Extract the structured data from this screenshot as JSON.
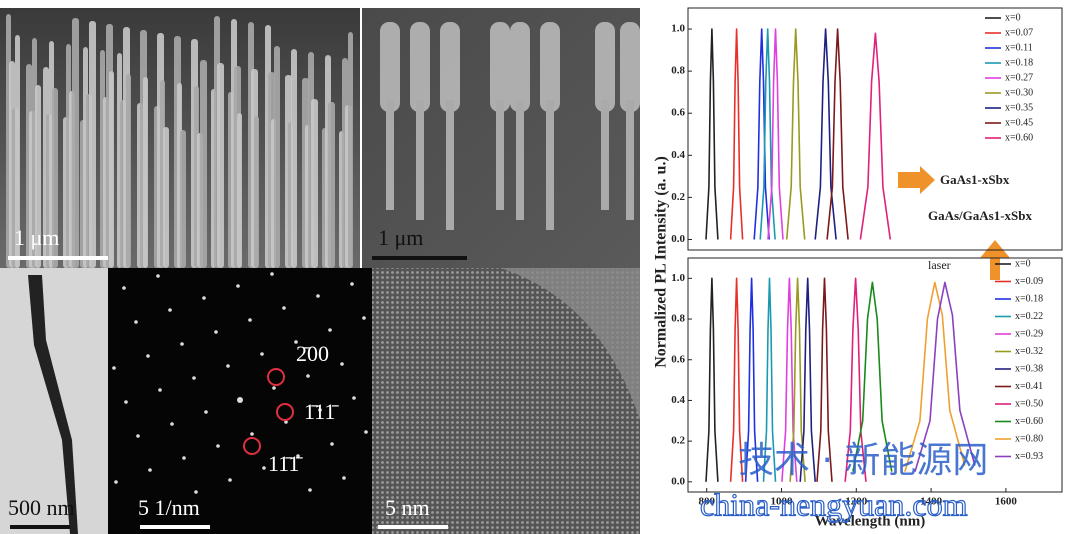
{
  "panels": [
    {
      "scale_bar": "1 μm"
    },
    {
      "scale_bar": "1 μm"
    },
    {
      "scale_bar": "500 nm"
    },
    {
      "scale_bar": "5 1/nm",
      "spots": [
        "2̄00",
        "1̄11̄",
        "11̄1̄"
      ]
    },
    {
      "scale_bar": "5 nm"
    }
  ],
  "watermark": {
    "text": "技术 · 新能源网",
    "url": "china-nengyuan.com"
  },
  "chart_data": [
    {
      "type": "line",
      "ylabel": "Normalized PL Intensity (a. u.)",
      "annotations": [
        "GaAs1-xSbx",
        "GaAs/GaAs1-xSbx"
      ],
      "xlim": [
        750,
        1750
      ],
      "ylim": [
        -0.05,
        1.1
      ],
      "yticks": [
        {
          "value": 0,
          "label": "0.0"
        },
        0.2,
        0.4,
        0.6,
        0.8,
        {
          "value": 1,
          "label": "1.0"
        }
      ],
      "series": [
        {
          "name": "x=0",
          "color": "#222222",
          "x": [
            798,
            806,
            810,
            814,
            818,
            822,
            830
          ],
          "values": [
            0,
            0.25,
            0.75,
            1,
            0.75,
            0.25,
            0
          ]
        },
        {
          "name": "x=0.07",
          "color": "#e8302a",
          "x": [
            864,
            872,
            876,
            880,
            884,
            888,
            896
          ],
          "values": [
            0,
            0.25,
            0.75,
            1,
            0.75,
            0.25,
            0
          ]
        },
        {
          "name": "x=0.11",
          "color": "#2030e0",
          "x": [
            927,
            937,
            942,
            947,
            952,
            957,
            967
          ],
          "values": [
            0,
            0.25,
            0.75,
            1,
            0.75,
            0.25,
            0
          ]
        },
        {
          "name": "x=0.18",
          "color": "#1a9ab0",
          "x": [
            943,
            953,
            958,
            963,
            968,
            973,
            983
          ],
          "values": [
            0,
            0.25,
            0.75,
            1,
            0.75,
            0.25,
            0
          ]
        },
        {
          "name": "x=0.27",
          "color": "#e040e0",
          "x": [
            964,
            974,
            979,
            984,
            989,
            994,
            1004
          ],
          "values": [
            0,
            0.25,
            0.75,
            1,
            0.75,
            0.25,
            0
          ]
        },
        {
          "name": "x=0.30",
          "color": "#9a9a20",
          "x": [
            1014,
            1026,
            1032,
            1038,
            1044,
            1050,
            1062
          ],
          "values": [
            0,
            0.25,
            0.75,
            1,
            0.75,
            0.25,
            0
          ]
        },
        {
          "name": "x=0.35",
          "color": "#202080",
          "x": [
            1090,
            1104,
            1111,
            1118,
            1125,
            1132,
            1146
          ],
          "values": [
            0,
            0.25,
            0.75,
            1,
            0.75,
            0.25,
            0
          ]
        },
        {
          "name": "x=0.45",
          "color": "#7a1a1a",
          "x": [
            1122,
            1136,
            1143,
            1150,
            1157,
            1164,
            1178
          ],
          "values": [
            0,
            0.25,
            0.75,
            1,
            0.75,
            0.25,
            0
          ]
        },
        {
          "name": "x=0.60",
          "color": "#e0207a",
          "x": [
            1211,
            1231,
            1241,
            1251,
            1261,
            1271,
            1291
          ],
          "values": [
            0,
            0.25,
            0.75,
            0.98,
            0.75,
            0.25,
            0
          ]
        }
      ]
    },
    {
      "type": "line",
      "xlabel": "Wavelength (nm)",
      "annotations": [
        "laser"
      ],
      "xlim": [
        750,
        1750
      ],
      "ylim": [
        -0.05,
        1.1
      ],
      "xticks": [
        800,
        1000,
        1200,
        1400,
        1600
      ],
      "yticks": [
        {
          "value": 0,
          "label": "0.0"
        },
        0.2,
        0.4,
        0.6,
        0.8,
        {
          "value": 1,
          "label": "1.0"
        }
      ],
      "series": [
        {
          "name": "x=0",
          "color": "#222222",
          "x": [
            798,
            806,
            810,
            814,
            818,
            822,
            830
          ],
          "values": [
            0,
            0.25,
            0.75,
            1,
            0.75,
            0.25,
            0
          ]
        },
        {
          "name": "x=0.09",
          "color": "#e8302a",
          "x": [
            864,
            872,
            876,
            880,
            884,
            888,
            896
          ],
          "values": [
            0,
            0.25,
            0.75,
            1,
            0.75,
            0.25,
            0
          ]
        },
        {
          "name": "x=0.18",
          "color": "#2030e0",
          "x": [
            904,
            912,
            916,
            920,
            924,
            928,
            936
          ],
          "values": [
            0,
            0.25,
            0.75,
            1,
            0.75,
            0.25,
            0
          ]
        },
        {
          "name": "x=0.22",
          "color": "#1a9ab0",
          "x": [
            952,
            960,
            964,
            968,
            972,
            976,
            984
          ],
          "values": [
            0,
            0.25,
            0.75,
            1,
            0.75,
            0.25,
            0
          ]
        },
        {
          "name": "x=0.29",
          "color": "#e040e0",
          "x": [
            1001,
            1011,
            1016,
            1021,
            1026,
            1031,
            1041
          ],
          "values": [
            0,
            0.25,
            0.75,
            1,
            0.75,
            0.25,
            0
          ]
        },
        {
          "name": "x=0.32",
          "color": "#9a9a20",
          "x": [
            1023,
            1033,
            1038,
            1043,
            1048,
            1053,
            1063
          ],
          "values": [
            0,
            0.25,
            0.75,
            1,
            0.75,
            0.25,
            0
          ]
        },
        {
          "name": "x=0.38",
          "color": "#202080",
          "x": [
            1050,
            1060,
            1065,
            1070,
            1075,
            1080,
            1090
          ],
          "values": [
            0,
            0.25,
            0.75,
            1,
            0.75,
            0.25,
            0
          ]
        },
        {
          "name": "x=0.41",
          "color": "#7a1a1a",
          "x": [
            1095,
            1105,
            1110,
            1115,
            1120,
            1125,
            1135
          ],
          "values": [
            0,
            0.25,
            0.75,
            1,
            0.75,
            0.25,
            0
          ]
        },
        {
          "name": "x=0.50",
          "color": "#e0207a",
          "x": [
            1170,
            1184,
            1191,
            1198,
            1205,
            1212,
            1226
          ],
          "values": [
            0,
            0.25,
            0.75,
            1,
            0.75,
            0.25,
            0
          ]
        },
        {
          "name": "x=0.60",
          "color": "#1a8a1a",
          "x": [
            1191,
            1217,
            1230,
            1243,
            1256,
            1269,
            1295
          ],
          "values": [
            0.05,
            0.3,
            0.8,
            0.98,
            0.8,
            0.3,
            0.05
          ]
        },
        {
          "name": "x=0.80",
          "color": "#f0a030",
          "x": [
            1330,
            1370,
            1390,
            1410,
            1430,
            1450,
            1490
          ],
          "values": [
            0.05,
            0.3,
            0.8,
            0.98,
            0.82,
            0.35,
            0.08
          ]
        },
        {
          "name": "x=0.93",
          "color": "#8a40c0",
          "x": [
            1357,
            1397,
            1417,
            1437,
            1457,
            1477,
            1517
          ],
          "values": [
            0.05,
            0.3,
            0.8,
            0.98,
            0.82,
            0.35,
            0.08
          ]
        }
      ]
    }
  ]
}
